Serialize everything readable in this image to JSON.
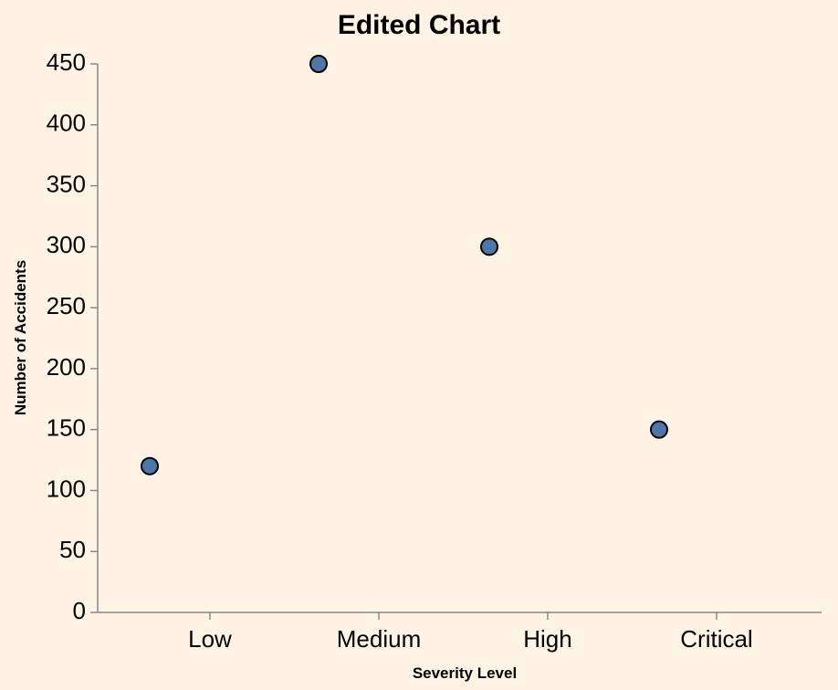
{
  "chart_data": {
    "type": "scatter",
    "title": "Edited Chart",
    "xlabel": "Severity Level",
    "ylabel": "Number of Accidents",
    "categories": [
      "Low",
      "Medium",
      "High",
      "Critical"
    ],
    "points": [
      {
        "x": "Low",
        "y": 120
      },
      {
        "x": "Medium",
        "y": 450
      },
      {
        "x": "High",
        "y": 300
      },
      {
        "x": "Critical",
        "y": 150
      }
    ],
    "ylim": [
      0,
      450
    ],
    "yticks": [
      0,
      50,
      100,
      150,
      200,
      250,
      300,
      350,
      400,
      450
    ],
    "grid": false,
    "point_color": "#4c78a8",
    "point_stroke": "#000000",
    "background": "#fff3e5"
  }
}
